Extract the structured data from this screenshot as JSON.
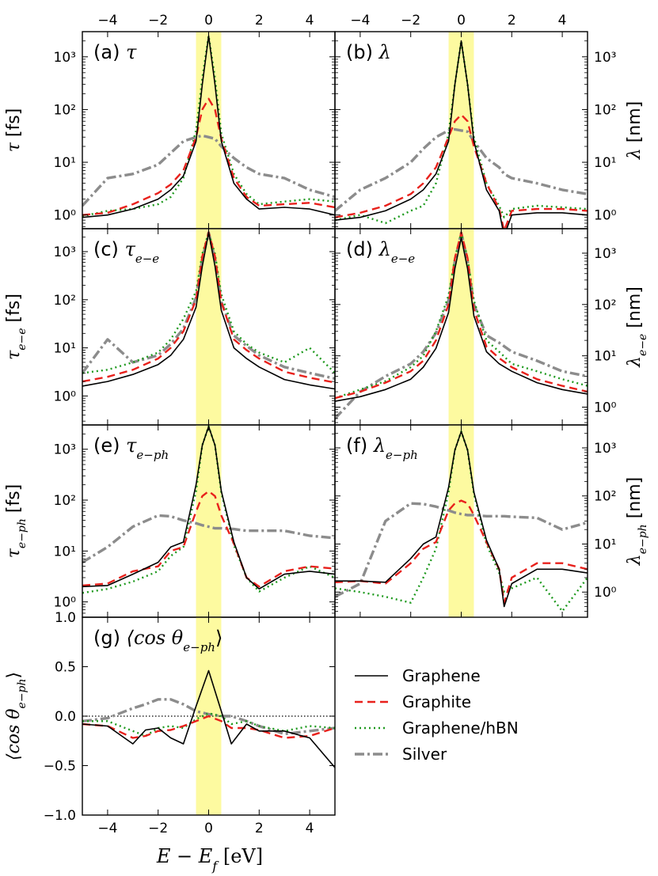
{
  "figure": {
    "xlabel": "E − E_f [eV]",
    "xlabel_main": "E − E",
    "xlabel_sub": "f",
    "xlabel_unit": " [eV]",
    "xticks": [
      "−4",
      "−2",
      "0",
      "2",
      "4"
    ],
    "colors": {
      "graphene": "#000000",
      "graphite": "#e8211c",
      "hbn": "#1f9a1f",
      "silver": "#8c8c8c",
      "highlight": "#fdfaa0"
    }
  },
  "legend": {
    "items": [
      "Graphene",
      "Graphite",
      "Graphene/hBN",
      "Silver"
    ]
  },
  "panels": [
    {
      "id": "a",
      "tag": "(a) ",
      "sym": "τ",
      "sub": "",
      "ylabel_sym": "τ",
      "ylabel_sub": "",
      "ylabel_unit": " [fs]",
      "ymin_label": "",
      "yticks": [
        "10⁰",
        "10¹",
        "10²",
        "10³"
      ]
    },
    {
      "id": "b",
      "tag": "(b) ",
      "sym": "λ",
      "sub": "",
      "ylabel_sym": "λ",
      "ylabel_sub": "",
      "ylabel_unit": " [nm]",
      "ymin_label": "",
      "yticks": [
        "10⁰",
        "10¹",
        "10²",
        "10³"
      ]
    },
    {
      "id": "c",
      "tag": "(c) ",
      "sym": "τ",
      "sub": "e−e",
      "ylabel_sym": "τ",
      "ylabel_sub": "e−e",
      "ylabel_unit": " [fs]",
      "ymin_label": "",
      "yticks": [
        "10⁰",
        "10¹",
        "10²",
        "10³"
      ]
    },
    {
      "id": "d",
      "tag": "(d) ",
      "sym": "λ",
      "sub": "e−e",
      "ylabel_sym": "λ",
      "ylabel_sub": "e−e",
      "ylabel_unit": " [nm]",
      "ymin_label": "",
      "yticks": [
        "10⁰",
        "10¹",
        "10²",
        "10³"
      ]
    },
    {
      "id": "e",
      "tag": "(e) ",
      "sym": "τ",
      "sub": "e−ph",
      "ylabel_sym": "τ",
      "ylabel_sub": "e−ph",
      "ylabel_unit": " [fs]",
      "ymin_label": "1.0",
      "yticks": [
        "10⁰",
        "10¹",
        "10²",
        "10³"
      ]
    },
    {
      "id": "f",
      "tag": "(f) ",
      "sym": "λ",
      "sub": "e−ph",
      "ylabel_sym": "λ",
      "ylabel_sub": "e−ph",
      "ylabel_unit": " [nm]",
      "ymin_label": "",
      "yticks": [
        "10⁰",
        "10¹",
        "10²",
        "10³"
      ]
    },
    {
      "id": "g",
      "tag": "(g) ",
      "sym": "⟨cos θ",
      "sub": "e−ph",
      "close": "⟩",
      "ylabel_sym": "⟨cos θ",
      "ylabel_sub": "e−ph",
      "ylabel_close": "⟩",
      "ylabel_unit": "",
      "ymin_label": "",
      "yticks": [
        "−1.0",
        "−0.5",
        "0.0",
        "0.5"
      ]
    }
  ],
  "chart_data": [
    {
      "panel": "a",
      "type": "line",
      "title": "(a) τ",
      "ylabel": "τ [fs]",
      "xlabel": "E − E_f [eV]",
      "xlim": [
        -5,
        5
      ],
      "ylim": [
        0.55,
        3000
      ],
      "yscale": "log",
      "highlight_band": [
        -0.5,
        0.5
      ],
      "x": [
        -5,
        -4,
        -3,
        -2,
        -1.5,
        -1,
        -0.5,
        -0.25,
        0,
        0.25,
        0.5,
        1,
        1.5,
        2,
        3,
        4,
        5
      ],
      "series": [
        {
          "name": "Graphene",
          "values": [
            0.9,
            1.0,
            1.3,
            2.0,
            3.0,
            5.5,
            25,
            300,
            2500,
            300,
            25,
            4,
            2,
            1.3,
            1.4,
            1.3,
            1.0
          ]
        },
        {
          "name": "Graphite",
          "values": [
            1.0,
            1.1,
            1.6,
            2.6,
            3.8,
            7,
            30,
            100,
            160,
            100,
            28,
            5,
            2.2,
            1.5,
            1.6,
            1.7,
            1.4
          ]
        },
        {
          "name": "Graphene/hBN",
          "values": [
            0.95,
            1.2,
            1.3,
            1.6,
            2.2,
            5,
            40,
            400,
            2500,
            400,
            35,
            6,
            2.5,
            1.6,
            1.8,
            2.0,
            1.8
          ]
        },
        {
          "name": "Silver",
          "values": [
            1.5,
            5,
            6,
            9,
            15,
            25,
            30,
            32,
            30,
            28,
            20,
            12,
            8,
            6,
            5,
            3,
            2.2
          ]
        }
      ]
    },
    {
      "panel": "b",
      "type": "line",
      "title": "(b) λ",
      "ylabel": "λ [nm]",
      "xlabel": "E − E_f [eV]",
      "xlim": [
        -5,
        5
      ],
      "ylim": [
        0.55,
        3000
      ],
      "yscale": "log",
      "highlight_band": [
        -0.5,
        0.5
      ],
      "x": [
        -5,
        -4,
        -3,
        -2,
        -1.5,
        -1,
        -0.5,
        -0.25,
        0,
        0.25,
        0.5,
        1,
        1.5,
        1.7,
        2,
        3,
        4,
        5
      ],
      "series": [
        {
          "name": "Graphene",
          "values": [
            0.8,
            0.9,
            1.2,
            2.0,
            3.0,
            6,
            25,
            300,
            2000,
            300,
            25,
            3,
            1.2,
            0.4,
            1.0,
            1.1,
            1.1,
            1.0
          ]
        },
        {
          "name": "Graphite",
          "values": [
            0.9,
            1.1,
            1.5,
            2.5,
            4,
            8,
            30,
            60,
            80,
            60,
            20,
            4,
            1.3,
            0.5,
            1.2,
            1.3,
            1.3,
            1.2
          ]
        },
        {
          "name": "Graphene/hBN",
          "values": [
            0.8,
            1.0,
            0.7,
            1.2,
            1.5,
            4,
            35,
            300,
            2000,
            300,
            30,
            4,
            1.5,
            0.9,
            1.3,
            1.5,
            1.4,
            1.3
          ]
        },
        {
          "name": "Silver",
          "values": [
            1.2,
            3,
            5,
            10,
            18,
            30,
            40,
            42,
            40,
            38,
            25,
            12,
            8,
            6,
            5,
            4,
            3,
            2.5
          ]
        }
      ]
    },
    {
      "panel": "c",
      "type": "line",
      "title": "(c) τ_e−e",
      "ylabel": "τ_e−e [fs]",
      "xlabel": "E − E_f [eV]",
      "xlim": [
        -5,
        5
      ],
      "ylim": [
        0.25,
        3000
      ],
      "yscale": "log",
      "highlight_band": [
        -0.5,
        0.5
      ],
      "x": [
        -5,
        -4,
        -3,
        -2,
        -1.5,
        -1,
        -0.5,
        -0.25,
        0,
        0.25,
        0.5,
        1,
        1.5,
        2,
        3,
        4,
        5
      ],
      "series": [
        {
          "name": "Graphene",
          "values": [
            1.6,
            2.0,
            2.8,
            4.5,
            7,
            15,
            70,
            500,
            2500,
            500,
            60,
            10,
            6,
            4,
            2.2,
            1.7,
            1.4
          ]
        },
        {
          "name": "Graphite",
          "values": [
            2.0,
            2.5,
            3.5,
            6,
            10,
            22,
            100,
            800,
            2500,
            800,
            90,
            15,
            9,
            6,
            3.2,
            2.4,
            1.9
          ]
        },
        {
          "name": "Graphene/hBN",
          "values": [
            3,
            3.5,
            5,
            8,
            15,
            40,
            150,
            900,
            2500,
            900,
            130,
            22,
            12,
            8,
            5,
            10,
            3
          ]
        },
        {
          "name": "Silver",
          "values": [
            3,
            15,
            5,
            7,
            12,
            25,
            110,
            700,
            2500,
            700,
            90,
            18,
            11,
            7,
            4,
            3,
            2.3
          ]
        }
      ]
    },
    {
      "panel": "d",
      "type": "line",
      "title": "(d) λ_e−e",
      "ylabel": "λ_e−e [nm]",
      "xlabel": "E − E_f [eV]",
      "xlim": [
        -5,
        5
      ],
      "ylim": [
        0.45,
        3000
      ],
      "yscale": "log",
      "highlight_band": [
        -0.5,
        0.5
      ],
      "x": [
        -5,
        -4,
        -3,
        -2,
        -1.5,
        -1,
        -0.5,
        -0.25,
        0,
        0.25,
        0.5,
        1,
        1.5,
        2,
        3,
        4,
        5
      ],
      "series": [
        {
          "name": "Graphene",
          "values": [
            1.3,
            1.6,
            2.2,
            3.5,
            6,
            14,
            70,
            500,
            2000,
            500,
            60,
            12,
            7,
            5,
            3,
            2.2,
            1.8
          ]
        },
        {
          "name": "Graphite",
          "values": [
            1.5,
            2.0,
            3,
            5,
            8,
            20,
            100,
            800,
            2500,
            800,
            80,
            15,
            9,
            6,
            3.5,
            2.6,
            2.0
          ]
        },
        {
          "name": "Graphene/hBN",
          "values": [
            1.5,
            2.2,
            3.2,
            6,
            10,
            30,
            150,
            800,
            2500,
            800,
            120,
            20,
            12,
            7,
            5,
            3.5,
            2.6
          ]
        },
        {
          "name": "Silver",
          "values": [
            0.6,
            2,
            4,
            7,
            12,
            28,
            120,
            700,
            2500,
            700,
            100,
            25,
            18,
            12,
            8,
            5,
            4
          ]
        }
      ]
    },
    {
      "panel": "e",
      "type": "line",
      "title": "(e) τ_e−ph",
      "ylabel": "τ_e−ph [fs]",
      "xlabel": "E − E_f [eV]",
      "xlim": [
        -5,
        5
      ],
      "ylim": [
        0.5,
        3000
      ],
      "yscale": "log",
      "highlight_band": [
        -0.5,
        0.5
      ],
      "x": [
        -5,
        -4,
        -3,
        -2,
        -1.5,
        -1,
        -0.5,
        -0.25,
        0,
        0.25,
        0.5,
        1,
        1.5,
        2,
        3,
        4,
        5
      ],
      "series": [
        {
          "name": "Graphene",
          "values": [
            2.0,
            2.1,
            3.5,
            6,
            12,
            15,
            200,
            1200,
            2800,
            1200,
            150,
            15,
            3,
            1.8,
            3.5,
            4,
            3.5
          ]
        },
        {
          "name": "Graphite",
          "values": [
            2.1,
            2.3,
            4,
            5,
            10,
            12,
            60,
            120,
            150,
            120,
            50,
            14,
            3,
            2,
            4,
            5,
            4.5
          ]
        },
        {
          "name": "Graphene/hBN",
          "values": [
            1.5,
            1.8,
            2.5,
            4,
            8,
            12,
            150,
            1200,
            2800,
            1200,
            140,
            13,
            3,
            1.6,
            3,
            5,
            3
          ]
        },
        {
          "name": "Silver",
          "values": [
            6,
            12,
            30,
            50,
            48,
            40,
            35,
            32,
            30,
            28,
            28,
            27,
            25,
            25,
            25,
            20,
            18
          ]
        }
      ]
    },
    {
      "panel": "f",
      "type": "line",
      "title": "(f) λ_e−ph",
      "ylabel": "λ_e−ph [nm]",
      "xlabel": "E − E_f [eV]",
      "xlim": [
        -5,
        5
      ],
      "ylim": [
        0.3,
        3000
      ],
      "yscale": "log",
      "highlight_band": [
        -0.5,
        0.5
      ],
      "x": [
        -5,
        -4,
        -3,
        -2,
        -1.5,
        -1,
        -0.5,
        -0.25,
        0,
        0.25,
        0.5,
        1,
        1.5,
        1.7,
        2,
        3,
        4,
        5
      ],
      "series": [
        {
          "name": "Graphene",
          "values": [
            1.7,
            1.7,
            1.6,
            5,
            10,
            14,
            150,
            900,
            2200,
            900,
            120,
            12,
            3,
            0.5,
            1.5,
            3,
            3,
            2.5
          ]
        },
        {
          "name": "Graphite",
          "values": [
            1.6,
            1.7,
            1.5,
            4,
            8,
            11,
            50,
            70,
            80,
            70,
            40,
            11,
            3,
            0.6,
            2,
            4,
            4,
            3
          ]
        },
        {
          "name": "Graphene/hBN",
          "values": [
            1.2,
            1.0,
            0.8,
            0.6,
            2,
            8,
            120,
            900,
            2200,
            900,
            110,
            10,
            2.5,
            1,
            1.2,
            2,
            0.4,
            2
          ]
        },
        {
          "name": "Silver",
          "values": [
            0.8,
            1.5,
            30,
            70,
            68,
            60,
            50,
            45,
            42,
            40,
            40,
            38,
            38,
            38,
            37,
            35,
            20,
            28
          ]
        }
      ]
    },
    {
      "panel": "g",
      "type": "line",
      "title": "(g) ⟨cos θ_e−ph⟩",
      "ylabel": "⟨cos θ_e−ph⟩",
      "xlabel": "E − E_f [eV]",
      "xlim": [
        -5,
        5
      ],
      "ylim": [
        -1.0,
        1.0
      ],
      "yscale": "linear",
      "highlight_band": [
        -0.5,
        0.5
      ],
      "reference_line_y": 0.0,
      "x": [
        -5,
        -4,
        -3,
        -2.5,
        -2,
        -1.5,
        -1,
        -0.5,
        0,
        0.5,
        0.9,
        1.5,
        2,
        3,
        4,
        5
      ],
      "series": [
        {
          "name": "Graphene",
          "values": [
            -0.08,
            -0.1,
            -0.28,
            -0.14,
            -0.12,
            -0.22,
            -0.28,
            0.1,
            0.46,
            0.05,
            -0.28,
            -0.08,
            -0.15,
            -0.15,
            -0.22,
            -0.52
          ]
        },
        {
          "name": "Graphite",
          "values": [
            -0.08,
            -0.1,
            -0.22,
            -0.2,
            -0.15,
            -0.14,
            -0.1,
            -0.05,
            0.0,
            -0.05,
            -0.12,
            -0.12,
            -0.14,
            -0.22,
            -0.2,
            -0.12
          ]
        },
        {
          "name": "Graphene/hBN",
          "values": [
            -0.05,
            -0.05,
            -0.15,
            -0.2,
            -0.12,
            -0.1,
            -0.12,
            -0.03,
            0.03,
            0.0,
            -0.08,
            -0.05,
            -0.1,
            -0.15,
            -0.1,
            -0.12
          ]
        },
        {
          "name": "Silver",
          "values": [
            -0.05,
            -0.02,
            0.08,
            0.12,
            0.17,
            0.17,
            0.12,
            0.05,
            0.02,
            0.0,
            0.0,
            -0.05,
            -0.1,
            -0.18,
            -0.15,
            -0.12
          ]
        }
      ]
    }
  ]
}
